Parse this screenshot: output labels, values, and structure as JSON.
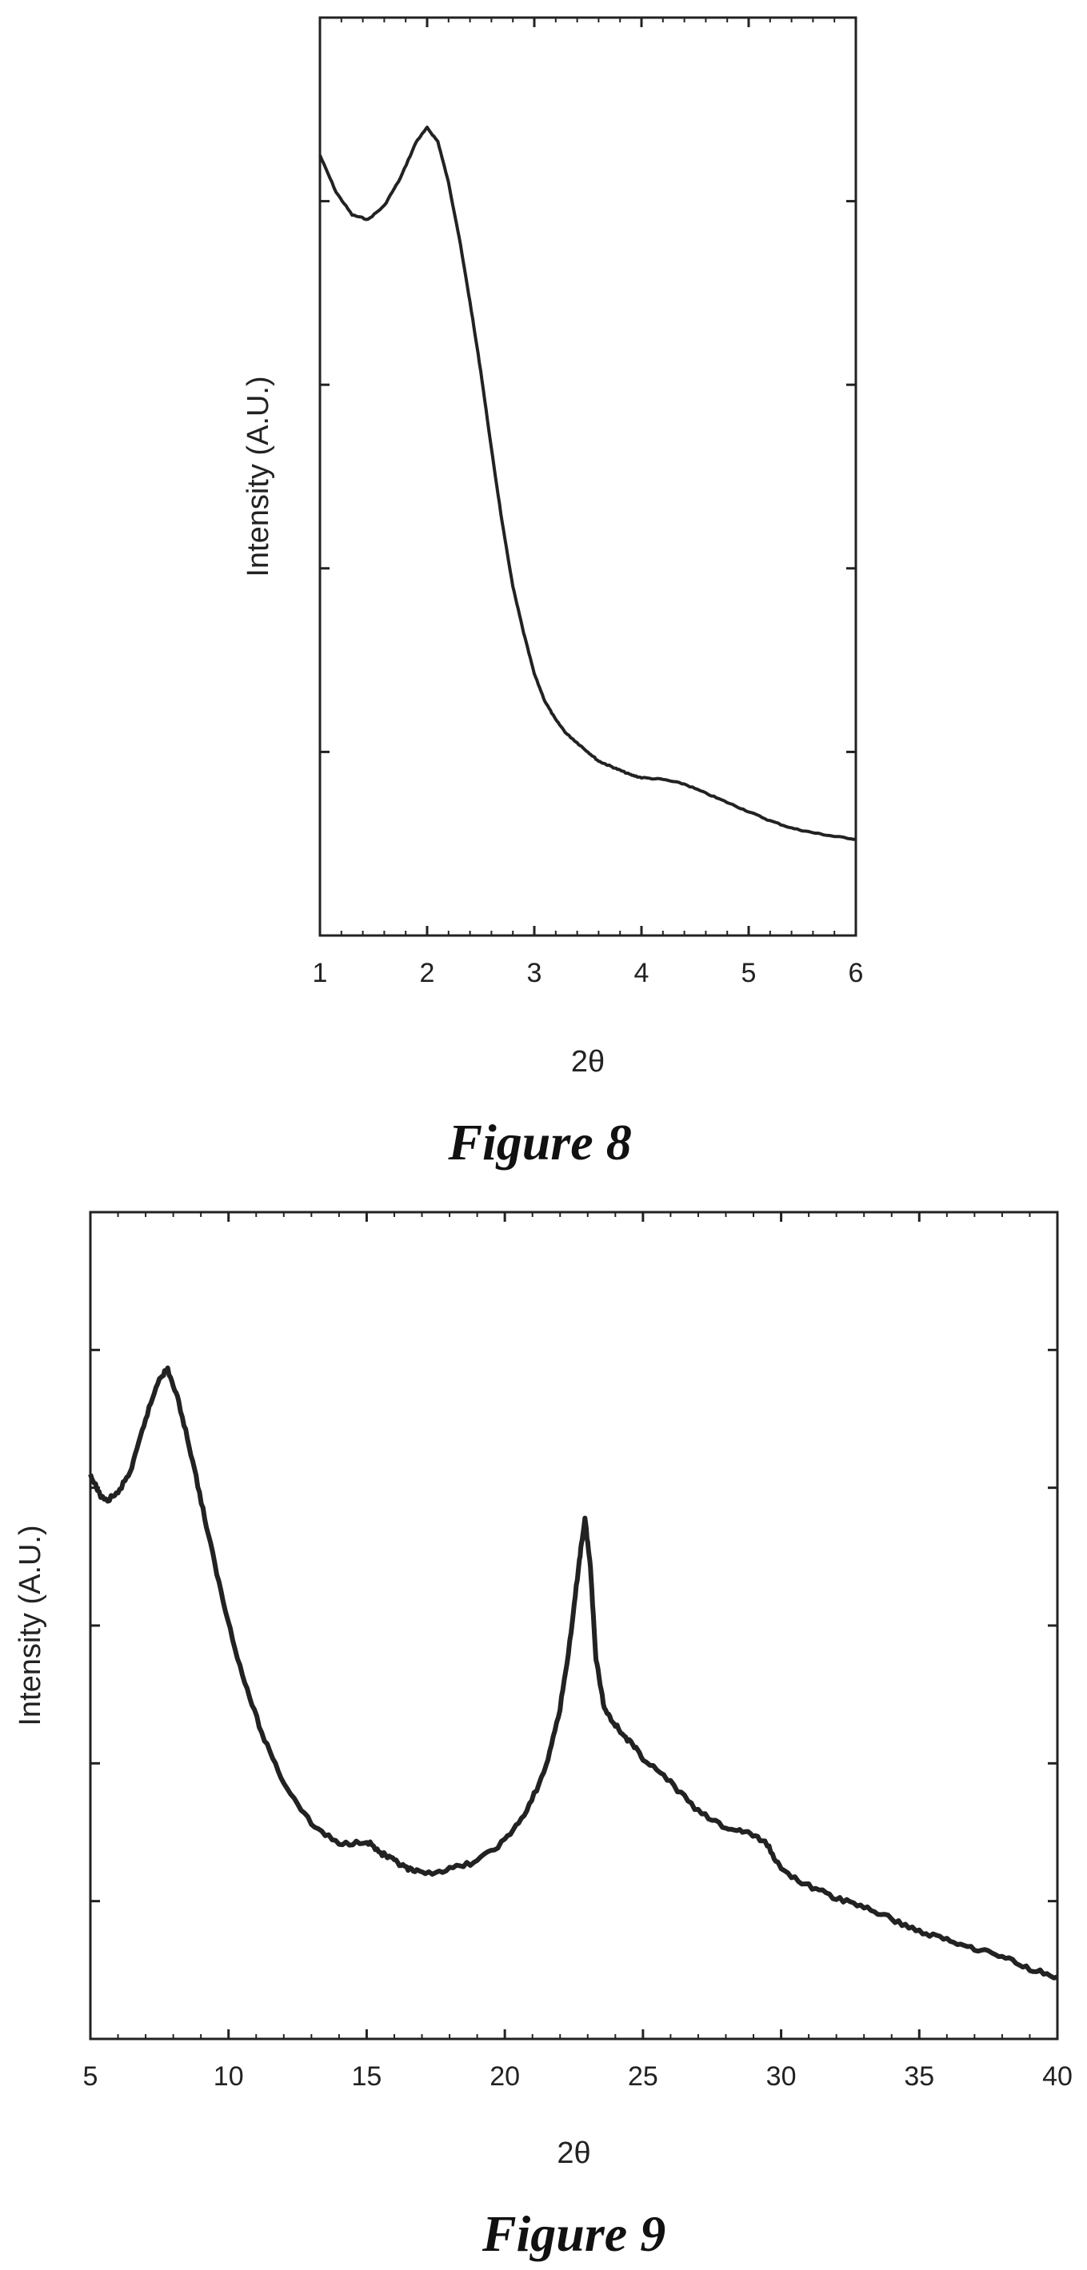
{
  "chart_data": [
    {
      "type": "line",
      "caption": "Figure 8",
      "xlabel": "2θ",
      "ylabel": "Intensity (A.U.)",
      "xlim": [
        1,
        6
      ],
      "ylim": [
        0,
        100
      ],
      "xticks": [
        "1",
        "2",
        "3",
        "4",
        "5",
        "6"
      ],
      "yticks_labeled": false,
      "grid": false,
      "series": [
        {
          "x": [
            1.0,
            1.15,
            1.3,
            1.45,
            1.6,
            1.75,
            1.9,
            2.0,
            2.1,
            2.2,
            2.3,
            2.4,
            2.5,
            2.6,
            2.7,
            2.8,
            2.9,
            3.0,
            3.1,
            3.2,
            3.3,
            3.4,
            3.5,
            3.6,
            3.7,
            3.8,
            3.9,
            4.0,
            4.2,
            4.4,
            4.6,
            4.8,
            5.0,
            5.2,
            5.4,
            5.6,
            5.8,
            6.0
          ],
          "y": [
            85,
            81,
            78.5,
            78,
            79.5,
            82.5,
            86.5,
            88,
            86.5,
            82,
            76,
            69,
            61.5,
            53,
            45,
            38,
            33,
            28.5,
            25.5,
            23.5,
            22,
            21,
            20,
            19,
            18.5,
            18,
            17.5,
            17.2,
            17,
            16.5,
            15.5,
            14.5,
            13.5,
            12.5,
            11.7,
            11.2,
            10.8,
            10.5
          ]
        }
      ]
    },
    {
      "type": "line",
      "caption": "Figure 9",
      "xlabel": "2θ",
      "ylabel": "Intensity (A.U.)",
      "xlim": [
        5,
        40
      ],
      "ylim": [
        0,
        100
      ],
      "xticks": [
        "5",
        "10",
        "15",
        "20",
        "25",
        "30",
        "35",
        "40"
      ],
      "yticks_labeled": false,
      "grid": false,
      "series": [
        {
          "x": [
            5.0,
            5.5,
            6.0,
            6.5,
            7.0,
            7.5,
            7.8,
            8.2,
            8.7,
            9.2,
            9.8,
            10.5,
            11.2,
            12.0,
            13.0,
            14.0,
            15.0,
            15.5,
            16.0,
            16.5,
            17.0,
            18.0,
            19.0,
            20.0,
            20.8,
            21.5,
            22.0,
            22.4,
            22.7,
            22.9,
            23.1,
            23.3,
            23.6,
            24.0,
            24.5,
            25.0,
            26.0,
            27.0,
            28.0,
            28.8,
            29.5,
            30.0,
            31.0,
            32.0,
            33.0,
            34.0,
            35.0,
            36.0,
            37.0,
            38.0,
            39.0,
            40.0
          ],
          "y": [
            68,
            65,
            66,
            69,
            75,
            80,
            81,
            77,
            70,
            62,
            53,
            44,
            37,
            31,
            26,
            23.5,
            24,
            22.5,
            21.5,
            20.5,
            20,
            20.5,
            21.5,
            24,
            27.5,
            33,
            40,
            49,
            58,
            63,
            57,
            46,
            40,
            38,
            36,
            34,
            31,
            27.5,
            25.5,
            25,
            23.5,
            20.5,
            18.5,
            17,
            16,
            14.5,
            13,
            12,
            11,
            10,
            8.5,
            7.5
          ]
        }
      ]
    }
  ]
}
